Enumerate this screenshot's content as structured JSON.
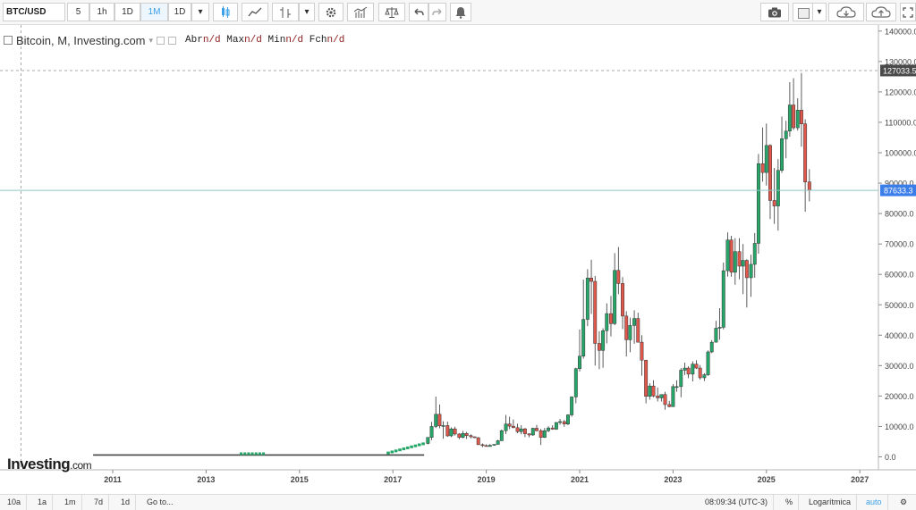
{
  "toolbar": {
    "symbol": "BTC/USD",
    "intervals": [
      "5",
      "1h",
      "1D",
      "1M",
      "1D"
    ],
    "active_interval": "1M"
  },
  "legend": {
    "title": "Bitcoin, M, Investing.com",
    "open_label": "Abr",
    "open_value": "n/d",
    "high_label": "Max",
    "high_value": "n/d",
    "low_label": "Min",
    "low_value": "n/d",
    "close_label": "Fch",
    "close_value": "n/d"
  },
  "logo": {
    "main": "Investing",
    "suffix": ".com"
  },
  "bottombar": {
    "ranges": [
      "10a",
      "1a",
      "1m",
      "7d",
      "1d"
    ],
    "goto": "Go to...",
    "time": "08:09:34 (UTC-3)",
    "percent": "%",
    "log": "Logarítmica",
    "auto": "auto"
  },
  "colors": {
    "up": "#26a769",
    "down": "#e0584b",
    "last_price": "#3b7de9",
    "crosshair_label": "#4a4a4a"
  },
  "chart_data": {
    "type": "candlestick",
    "ylim": [
      -10000,
      140000
    ],
    "y_ticks": [
      "0.0",
      "10000.0",
      "20000.0",
      "30000.0",
      "40000.0",
      "50000.0",
      "60000.0",
      "70000.0",
      "80000.0",
      "90000.0",
      "100000.0",
      "110000.0",
      "120000.0",
      "130000.0",
      "140000.0"
    ],
    "x_ticks": [
      "2011",
      "2013",
      "2015",
      "2017",
      "2019",
      "2021",
      "2023",
      "2025",
      "2027"
    ],
    "last_price_label": "87633.3",
    "last_price": 87633.3,
    "crosshair_label": "127033.5",
    "crosshair_price": 127033.5,
    "candles": [
      {
        "t": 2017.75,
        "o": 4400,
        "h": 6200,
        "l": 4100,
        "c": 6400
      },
      {
        "t": 2017.83,
        "o": 6400,
        "h": 11500,
        "l": 5500,
        "c": 10000
      },
      {
        "t": 2017.92,
        "o": 10000,
        "h": 19800,
        "l": 9500,
        "c": 14000
      },
      {
        "t": 2018.0,
        "o": 14000,
        "h": 17200,
        "l": 9400,
        "c": 10200
      },
      {
        "t": 2018.08,
        "o": 10200,
        "h": 11700,
        "l": 6000,
        "c": 10300
      },
      {
        "t": 2018.17,
        "o": 10300,
        "h": 11600,
        "l": 6600,
        "c": 6900
      },
      {
        "t": 2018.25,
        "o": 6900,
        "h": 9700,
        "l": 6500,
        "c": 9200
      },
      {
        "t": 2018.33,
        "o": 9200,
        "h": 9900,
        "l": 7000,
        "c": 7500
      },
      {
        "t": 2018.42,
        "o": 7500,
        "h": 7800,
        "l": 5800,
        "c": 6400
      },
      {
        "t": 2018.5,
        "o": 6400,
        "h": 8500,
        "l": 6100,
        "c": 7700
      },
      {
        "t": 2018.58,
        "o": 7700,
        "h": 8200,
        "l": 5900,
        "c": 7000
      },
      {
        "t": 2018.67,
        "o": 7000,
        "h": 7400,
        "l": 6100,
        "c": 6600
      },
      {
        "t": 2018.75,
        "o": 6600,
        "h": 6700,
        "l": 6200,
        "c": 6300
      },
      {
        "t": 2018.83,
        "o": 6300,
        "h": 6500,
        "l": 3900,
        "c": 4000
      },
      {
        "t": 2018.92,
        "o": 4000,
        "h": 4400,
        "l": 3200,
        "c": 3700
      },
      {
        "t": 2019.0,
        "o": 3700,
        "h": 4100,
        "l": 3400,
        "c": 3400
      },
      {
        "t": 2019.08,
        "o": 3400,
        "h": 4200,
        "l": 3400,
        "c": 3800
      },
      {
        "t": 2019.17,
        "o": 3800,
        "h": 4100,
        "l": 3700,
        "c": 4100
      },
      {
        "t": 2019.25,
        "o": 4100,
        "h": 5600,
        "l": 4100,
        "c": 5300
      },
      {
        "t": 2019.33,
        "o": 5300,
        "h": 9000,
        "l": 5300,
        "c": 8600
      },
      {
        "t": 2019.42,
        "o": 8600,
        "h": 13800,
        "l": 7500,
        "c": 10800
      },
      {
        "t": 2019.5,
        "o": 10800,
        "h": 13200,
        "l": 9100,
        "c": 10100
      },
      {
        "t": 2019.58,
        "o": 10100,
        "h": 12300,
        "l": 9400,
        "c": 9600
      },
      {
        "t": 2019.67,
        "o": 9600,
        "h": 10900,
        "l": 7800,
        "c": 8300
      },
      {
        "t": 2019.75,
        "o": 8300,
        "h": 10400,
        "l": 7400,
        "c": 9200
      },
      {
        "t": 2019.83,
        "o": 9200,
        "h": 9500,
        "l": 6500,
        "c": 7600
      },
      {
        "t": 2019.92,
        "o": 7600,
        "h": 7700,
        "l": 6400,
        "c": 7200
      },
      {
        "t": 2020.0,
        "o": 7200,
        "h": 9600,
        "l": 6900,
        "c": 9400
      },
      {
        "t": 2020.08,
        "o": 9400,
        "h": 10500,
        "l": 8400,
        "c": 8600
      },
      {
        "t": 2020.17,
        "o": 8600,
        "h": 9200,
        "l": 3900,
        "c": 6400
      },
      {
        "t": 2020.25,
        "o": 6400,
        "h": 9500,
        "l": 6200,
        "c": 8600
      },
      {
        "t": 2020.33,
        "o": 8600,
        "h": 10100,
        "l": 8100,
        "c": 9500
      },
      {
        "t": 2020.42,
        "o": 9500,
        "h": 10400,
        "l": 8900,
        "c": 9100
      },
      {
        "t": 2020.5,
        "o": 9100,
        "h": 11400,
        "l": 8900,
        "c": 11300
      },
      {
        "t": 2020.58,
        "o": 11300,
        "h": 12500,
        "l": 10600,
        "c": 11600
      },
      {
        "t": 2020.67,
        "o": 11600,
        "h": 12100,
        "l": 9900,
        "c": 10800
      },
      {
        "t": 2020.75,
        "o": 10800,
        "h": 14000,
        "l": 10400,
        "c": 13800
      },
      {
        "t": 2020.83,
        "o": 13800,
        "h": 19900,
        "l": 13200,
        "c": 19700
      },
      {
        "t": 2020.92,
        "o": 19700,
        "h": 29300,
        "l": 17600,
        "c": 29000
      },
      {
        "t": 2021.0,
        "o": 29000,
        "h": 41900,
        "l": 28100,
        "c": 33100
      },
      {
        "t": 2021.08,
        "o": 33100,
        "h": 58300,
        "l": 32300,
        "c": 45200
      },
      {
        "t": 2021.17,
        "o": 45200,
        "h": 61700,
        "l": 43000,
        "c": 58800
      },
      {
        "t": 2021.25,
        "o": 58800,
        "h": 64800,
        "l": 47000,
        "c": 57700
      },
      {
        "t": 2021.33,
        "o": 57700,
        "h": 59500,
        "l": 30000,
        "c": 37300
      },
      {
        "t": 2021.42,
        "o": 37300,
        "h": 41300,
        "l": 28800,
        "c": 35000
      },
      {
        "t": 2021.5,
        "o": 35000,
        "h": 42300,
        "l": 29300,
        "c": 41500
      },
      {
        "t": 2021.58,
        "o": 41500,
        "h": 50500,
        "l": 37300,
        "c": 47100
      },
      {
        "t": 2021.67,
        "o": 47100,
        "h": 52900,
        "l": 39600,
        "c": 43800
      },
      {
        "t": 2021.75,
        "o": 43800,
        "h": 67000,
        "l": 43300,
        "c": 61300
      },
      {
        "t": 2021.83,
        "o": 61300,
        "h": 69000,
        "l": 53500,
        "c": 57000
      },
      {
        "t": 2021.92,
        "o": 57000,
        "h": 59100,
        "l": 42000,
        "c": 46300
      },
      {
        "t": 2022.0,
        "o": 46300,
        "h": 47900,
        "l": 33000,
        "c": 38500
      },
      {
        "t": 2022.08,
        "o": 38500,
        "h": 45800,
        "l": 34400,
        "c": 43200
      },
      {
        "t": 2022.17,
        "o": 43200,
        "h": 48200,
        "l": 37200,
        "c": 45500
      },
      {
        "t": 2022.25,
        "o": 45500,
        "h": 47400,
        "l": 37700,
        "c": 37700
      },
      {
        "t": 2022.33,
        "o": 37700,
        "h": 40000,
        "l": 26700,
        "c": 31800
      },
      {
        "t": 2022.42,
        "o": 31800,
        "h": 31900,
        "l": 17600,
        "c": 19900
      },
      {
        "t": 2022.5,
        "o": 19900,
        "h": 24200,
        "l": 18800,
        "c": 23300
      },
      {
        "t": 2022.58,
        "o": 23300,
        "h": 25200,
        "l": 19600,
        "c": 20000
      },
      {
        "t": 2022.67,
        "o": 20000,
        "h": 22800,
        "l": 18200,
        "c": 19400
      },
      {
        "t": 2022.75,
        "o": 19400,
        "h": 20500,
        "l": 18200,
        "c": 20500
      },
      {
        "t": 2022.83,
        "o": 20500,
        "h": 21400,
        "l": 15500,
        "c": 17200
      },
      {
        "t": 2022.92,
        "o": 17200,
        "h": 18400,
        "l": 16300,
        "c": 16500
      },
      {
        "t": 2023.0,
        "o": 16500,
        "h": 23900,
        "l": 16500,
        "c": 23100
      },
      {
        "t": 2023.08,
        "o": 23100,
        "h": 25200,
        "l": 21400,
        "c": 23100
      },
      {
        "t": 2023.17,
        "o": 23100,
        "h": 29200,
        "l": 19600,
        "c": 28500
      },
      {
        "t": 2023.25,
        "o": 28500,
        "h": 31000,
        "l": 26900,
        "c": 29200
      },
      {
        "t": 2023.33,
        "o": 29200,
        "h": 29800,
        "l": 25900,
        "c": 27200
      },
      {
        "t": 2023.42,
        "o": 27200,
        "h": 31400,
        "l": 24800,
        "c": 30500
      },
      {
        "t": 2023.5,
        "o": 30500,
        "h": 31800,
        "l": 28900,
        "c": 29200
      },
      {
        "t": 2023.58,
        "o": 29200,
        "h": 30200,
        "l": 25400,
        "c": 26000
      },
      {
        "t": 2023.67,
        "o": 26000,
        "h": 27500,
        "l": 24900,
        "c": 27000
      },
      {
        "t": 2023.75,
        "o": 27000,
        "h": 35000,
        "l": 26600,
        "c": 34500
      },
      {
        "t": 2023.83,
        "o": 34500,
        "h": 38400,
        "l": 34100,
        "c": 37700
      },
      {
        "t": 2023.92,
        "o": 37700,
        "h": 44700,
        "l": 37600,
        "c": 42300
      },
      {
        "t": 2024.0,
        "o": 42300,
        "h": 48900,
        "l": 38500,
        "c": 42600
      },
      {
        "t": 2024.08,
        "o": 42600,
        "h": 63900,
        "l": 41900,
        "c": 61200
      },
      {
        "t": 2024.17,
        "o": 61200,
        "h": 73800,
        "l": 59300,
        "c": 71300
      },
      {
        "t": 2024.25,
        "o": 71300,
        "h": 72700,
        "l": 59200,
        "c": 60700
      },
      {
        "t": 2024.33,
        "o": 60700,
        "h": 71900,
        "l": 56600,
        "c": 67500
      },
      {
        "t": 2024.42,
        "o": 67500,
        "h": 71900,
        "l": 58400,
        "c": 62700
      },
      {
        "t": 2024.5,
        "o": 62700,
        "h": 70000,
        "l": 53500,
        "c": 64600
      },
      {
        "t": 2024.58,
        "o": 64600,
        "h": 65000,
        "l": 49100,
        "c": 58900
      },
      {
        "t": 2024.67,
        "o": 58900,
        "h": 66500,
        "l": 52600,
        "c": 63300
      },
      {
        "t": 2024.75,
        "o": 63300,
        "h": 73600,
        "l": 58900,
        "c": 70200
      },
      {
        "t": 2024.83,
        "o": 70200,
        "h": 99600,
        "l": 66800,
        "c": 96400
      },
      {
        "t": 2024.92,
        "o": 96400,
        "h": 108300,
        "l": 90500,
        "c": 93500
      },
      {
        "t": 2025.0,
        "o": 93500,
        "h": 109600,
        "l": 89200,
        "c": 102400
      },
      {
        "t": 2025.08,
        "o": 102400,
        "h": 102800,
        "l": 78200,
        "c": 84300
      },
      {
        "t": 2025.17,
        "o": 84300,
        "h": 95000,
        "l": 76600,
        "c": 82500
      },
      {
        "t": 2025.25,
        "o": 82500,
        "h": 97900,
        "l": 74400,
        "c": 94200
      },
      {
        "t": 2025.33,
        "o": 94200,
        "h": 111900,
        "l": 93400,
        "c": 104600
      },
      {
        "t": 2025.42,
        "o": 104600,
        "h": 110500,
        "l": 98200,
        "c": 107100
      },
      {
        "t": 2025.5,
        "o": 107100,
        "h": 123200,
        "l": 105300,
        "c": 115700
      },
      {
        "t": 2025.58,
        "o": 115700,
        "h": 124500,
        "l": 107500,
        "c": 108200
      },
      {
        "t": 2025.67,
        "o": 108200,
        "h": 117900,
        "l": 107300,
        "c": 114000
      },
      {
        "t": 2025.75,
        "o": 114000,
        "h": 126200,
        "l": 102000,
        "c": 109500
      },
      {
        "t": 2025.83,
        "o": 109500,
        "h": 111000,
        "l": 80600,
        "c": 90400
      },
      {
        "t": 2025.92,
        "o": 90400,
        "h": 94600,
        "l": 84000,
        "c": 87633
      }
    ],
    "flat_segment": {
      "start": 2010.58,
      "end": 2017.67,
      "value": 600
    }
  }
}
